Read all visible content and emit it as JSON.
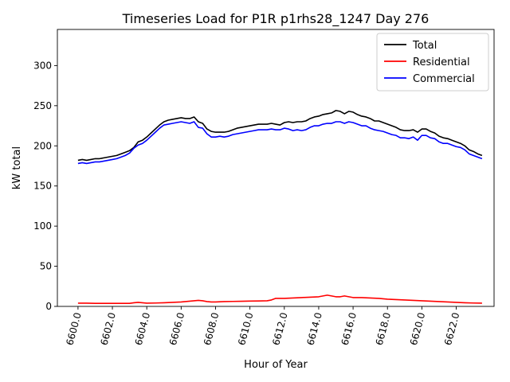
{
  "chart_data": {
    "type": "line",
    "title": "Timeseries Load for P1R p1rhs28_1247  Day 276",
    "xlabel": "Hour of Year",
    "ylabel": "kW total",
    "xlim": [
      6598.8,
      6624.2
    ],
    "ylim": [
      0,
      345
    ],
    "xticks": [
      6600,
      6602,
      6604,
      6606,
      6608,
      6610,
      6612,
      6614,
      6616,
      6618,
      6620,
      6622
    ],
    "xtick_labels": [
      "6600.0",
      "6602.0",
      "6604.0",
      "6606.0",
      "6608.0",
      "6610.0",
      "6612.0",
      "6614.0",
      "6616.0",
      "6618.0",
      "6620.0",
      "6622.0"
    ],
    "yticks": [
      0,
      50,
      100,
      150,
      200,
      250,
      300
    ],
    "ytick_labels": [
      "0",
      "50",
      "100",
      "150",
      "200",
      "250",
      "300"
    ],
    "legend_position": "top-right",
    "grid": false,
    "series": [
      {
        "name": "Total",
        "color": "#000000",
        "x": [
          6600.0,
          6600.25,
          6600.5,
          6600.75,
          6601.0,
          6601.25,
          6601.5,
          6601.75,
          6602.0,
          6602.25,
          6602.5,
          6602.75,
          6603.0,
          6603.25,
          6603.5,
          6603.75,
          6604.0,
          6604.25,
          6604.5,
          6604.75,
          6605.0,
          6605.25,
          6605.5,
          6605.75,
          6606.0,
          6606.25,
          6606.5,
          6606.75,
          6607.0,
          6607.25,
          6607.5,
          6607.75,
          6608.0,
          6608.25,
          6608.5,
          6608.75,
          6609.0,
          6609.25,
          6609.5,
          6609.75,
          6610.0,
          6610.25,
          6610.5,
          6610.75,
          6611.0,
          6611.25,
          6611.5,
          6611.75,
          6612.0,
          6612.25,
          6612.5,
          6612.75,
          6613.0,
          6613.25,
          6613.5,
          6613.75,
          6614.0,
          6614.25,
          6614.5,
          6614.75,
          6615.0,
          6615.25,
          6615.5,
          6615.75,
          6616.0,
          6616.25,
          6616.5,
          6616.75,
          6617.0,
          6617.25,
          6617.5,
          6617.75,
          6618.0,
          6618.25,
          6618.5,
          6618.75,
          6619.0,
          6619.25,
          6619.5,
          6619.75,
          6620.0,
          6620.25,
          6620.5,
          6620.75,
          6621.0,
          6621.25,
          6621.5,
          6621.75,
          6622.0,
          6622.25,
          6622.5,
          6622.75,
          6623.0,
          6623.25,
          6623.5
        ],
        "values": [
          182,
          183,
          182,
          183,
          184,
          184,
          185,
          186,
          187,
          188,
          190,
          192,
          194,
          198,
          205,
          207,
          211,
          216,
          221,
          226,
          230,
          232,
          233,
          234,
          235,
          234,
          234,
          236,
          230,
          228,
          221,
          218,
          217,
          217,
          217,
          218,
          220,
          222,
          223,
          224,
          225,
          226,
          227,
          227,
          227,
          228,
          227,
          226,
          229,
          230,
          229,
          230,
          230,
          231,
          234,
          236,
          237,
          239,
          240,
          241,
          244,
          243,
          240,
          243,
          242,
          239,
          237,
          236,
          234,
          231,
          231,
          229,
          227,
          225,
          223,
          220,
          219,
          219,
          220,
          217,
          221,
          221,
          218,
          216,
          212,
          210,
          209,
          207,
          205,
          203,
          200,
          195,
          193,
          190,
          188
        ]
      },
      {
        "name": "Residential",
        "color": "#ff0000",
        "x": [
          6600.0,
          6600.5,
          6601.0,
          6601.5,
          6602.0,
          6602.5,
          6603.0,
          6603.25,
          6603.5,
          6603.75,
          6604.0,
          6604.5,
          6605.0,
          6605.5,
          6606.0,
          6606.25,
          6606.5,
          6606.75,
          6607.0,
          6607.25,
          6607.5,
          6607.75,
          6608.0,
          6608.5,
          6609.0,
          6609.5,
          6610.0,
          6610.5,
          6611.0,
          6611.25,
          6611.5,
          6611.75,
          6612.0,
          6612.5,
          6613.0,
          6613.5,
          6614.0,
          6614.25,
          6614.5,
          6614.75,
          6615.0,
          6615.25,
          6615.5,
          6615.75,
          6616.0,
          6616.5,
          6617.0,
          6617.5,
          6618.0,
          6618.5,
          6619.0,
          6619.5,
          6620.0,
          6620.5,
          6621.0,
          6621.5,
          6622.0,
          6622.5,
          6623.0,
          6623.5
        ],
        "values": [
          4,
          4,
          3.8,
          3.8,
          3.8,
          3.8,
          3.8,
          4.5,
          5,
          4.5,
          4,
          4.2,
          4.5,
          5,
          5.5,
          6,
          6.5,
          7,
          7.5,
          7,
          6,
          5.5,
          5.5,
          6,
          6.2,
          6.4,
          6.6,
          6.8,
          7,
          8,
          10,
          10,
          10,
          10.5,
          11,
          11.5,
          12,
          13,
          14,
          13,
          12,
          12,
          13,
          12,
          11,
          11,
          10.5,
          10,
          9,
          8.5,
          8,
          7.5,
          7,
          6.5,
          6,
          5.5,
          5,
          4.5,
          4.2,
          4
        ]
      },
      {
        "name": "Commercial",
        "color": "#0000ff",
        "x": [
          6600.0,
          6600.25,
          6600.5,
          6600.75,
          6601.0,
          6601.25,
          6601.5,
          6601.75,
          6602.0,
          6602.25,
          6602.5,
          6602.75,
          6603.0,
          6603.25,
          6603.5,
          6603.75,
          6604.0,
          6604.25,
          6604.5,
          6604.75,
          6605.0,
          6605.25,
          6605.5,
          6605.75,
          6606.0,
          6606.25,
          6606.5,
          6606.75,
          6607.0,
          6607.25,
          6607.5,
          6607.75,
          6608.0,
          6608.25,
          6608.5,
          6608.75,
          6609.0,
          6609.25,
          6609.5,
          6609.75,
          6610.0,
          6610.25,
          6610.5,
          6610.75,
          6611.0,
          6611.25,
          6611.5,
          6611.75,
          6612.0,
          6612.25,
          6612.5,
          6612.75,
          6613.0,
          6613.25,
          6613.5,
          6613.75,
          6614.0,
          6614.25,
          6614.5,
          6614.75,
          6615.0,
          6615.25,
          6615.5,
          6615.75,
          6616.0,
          6616.25,
          6616.5,
          6616.75,
          6617.0,
          6617.25,
          6617.5,
          6617.75,
          6618.0,
          6618.25,
          6618.5,
          6618.75,
          6619.0,
          6619.25,
          6619.5,
          6619.75,
          6620.0,
          6620.25,
          6620.5,
          6620.75,
          6621.0,
          6621.25,
          6621.5,
          6621.75,
          6622.0,
          6622.25,
          6622.5,
          6622.75,
          6623.0,
          6623.25,
          6623.5
        ],
        "values": [
          178,
          179,
          178,
          179,
          180,
          180,
          181,
          182,
          183,
          184,
          186,
          188,
          191,
          197,
          201,
          203,
          207,
          212,
          217,
          222,
          226,
          227,
          228,
          229,
          230,
          229,
          228,
          230,
          223,
          222,
          215,
          211,
          211,
          212,
          211,
          212,
          214,
          215,
          216,
          217,
          218,
          219,
          220,
          220,
          220,
          221,
          220,
          220,
          222,
          221,
          219,
          220,
          219,
          220,
          223,
          225,
          225,
          227,
          228,
          228,
          230,
          230,
          228,
          230,
          229,
          227,
          225,
          225,
          222,
          220,
          219,
          218,
          216,
          214,
          213,
          210,
          210,
          209,
          211,
          207,
          213,
          213,
          210,
          209,
          205,
          203,
          203,
          201,
          199,
          198,
          195,
          190,
          188,
          186,
          184
        ]
      }
    ]
  }
}
